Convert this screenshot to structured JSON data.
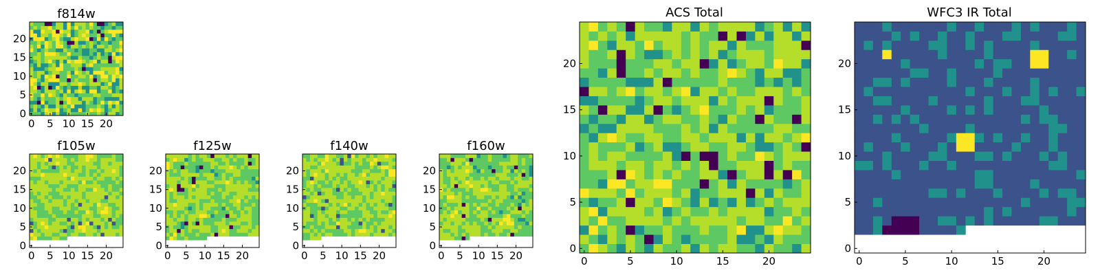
{
  "colormap": [
    "#440154",
    "#3b528b",
    "#21918c",
    "#5ec962",
    "#b5de2b",
    "#fde725"
  ],
  "chart_data": [
    {
      "id": "f814w",
      "type": "heatmap",
      "title": "f814w",
      "grid_size": 25,
      "xticks": [
        "0",
        "5",
        "10",
        "15",
        "20"
      ],
      "yticks": [
        "0",
        "5",
        "10",
        "15",
        "20"
      ],
      "field": "noise-fine",
      "seed": 11
    },
    {
      "id": "f105w",
      "type": "heatmap",
      "title": "f105w",
      "grid_size": 25,
      "xticks": [
        "0",
        "5",
        "10",
        "15",
        "20"
      ],
      "yticks": [
        "0",
        "5",
        "10",
        "15",
        "20"
      ],
      "field": "smooth-light",
      "seed": 23,
      "blank_rows_bottom": 2,
      "blank_cols_from": 0,
      "partial_row": {
        "row": 2,
        "from_col": 10
      }
    },
    {
      "id": "f125w",
      "type": "heatmap",
      "title": "f125w",
      "grid_size": 25,
      "xticks": [
        "0",
        "5",
        "10",
        "15",
        "20"
      ],
      "yticks": [
        "0",
        "5",
        "10",
        "15",
        "20"
      ],
      "field": "smooth",
      "seed": 37,
      "blank_rows_bottom": 2,
      "partial_row": {
        "row": 2,
        "from_col": 11
      }
    },
    {
      "id": "f140w",
      "type": "heatmap",
      "title": "f140w",
      "grid_size": 25,
      "xticks": [
        "0",
        "5",
        "10",
        "15",
        "20"
      ],
      "yticks": [
        "0",
        "5",
        "10",
        "15",
        "20"
      ],
      "field": "smooth-light",
      "seed": 41,
      "blank_rows_bottom": 2,
      "partial_row": {
        "row": 2,
        "from_col": 5
      }
    },
    {
      "id": "f160w",
      "type": "heatmap",
      "title": "f160w",
      "grid_size": 25,
      "xticks": [
        "0",
        "5",
        "10",
        "15",
        "20"
      ],
      "yticks": [
        "0",
        "5",
        "10",
        "15",
        "20"
      ],
      "field": "smooth",
      "seed": 53,
      "blank_rows_bottom": 2,
      "partial_row": {
        "row": 2,
        "from_col": 8
      }
    },
    {
      "id": "acs_total",
      "type": "heatmap",
      "title": "ACS Total",
      "grid_size": 25,
      "xticks": [
        "0",
        "5",
        "10",
        "15",
        "20"
      ],
      "yticks": [
        "0",
        "5",
        "10",
        "15",
        "20"
      ],
      "field": "noise-coarse",
      "seed": 67
    },
    {
      "id": "wfc3_ir_total",
      "type": "heatmap",
      "title": "WFC3 IR Total",
      "grid_size": 25,
      "xticks": [
        "0",
        "5",
        "10",
        "15",
        "20"
      ],
      "yticks": [
        "0",
        "5",
        "10",
        "15",
        "20"
      ],
      "field": "dark",
      "seed": 79,
      "blank_rows_bottom": 2,
      "partial_row": {
        "row": 2,
        "from_col": 12
      },
      "hot_spots": [
        [
          3,
          21,
          1,
          1
        ],
        [
          19,
          20,
          2,
          2
        ],
        [
          11,
          11,
          2,
          2
        ]
      ],
      "dark_spots": [
        [
          4,
          0,
          3,
          4
        ],
        [
          3,
          1,
          2,
          2
        ]
      ]
    }
  ]
}
